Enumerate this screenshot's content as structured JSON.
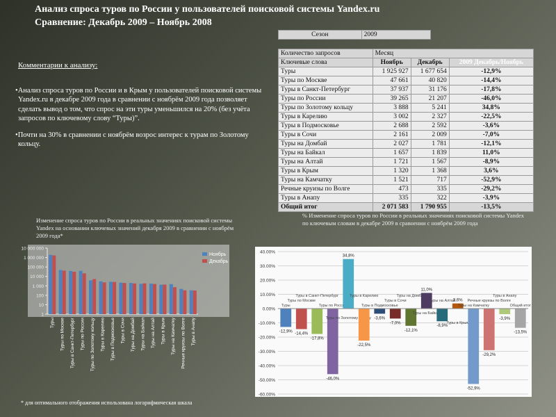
{
  "header": {
    "title": "Анализ спроса туров  по  России у пользователей  поисковой системы Yandex.ru",
    "subtitle": "Сравнение: Декабрь 2009 – Ноябрь 2008"
  },
  "comments": {
    "heading": "Комментарии к анализу:",
    "items": [
      "Анализ спроса туров по России и в Крым у пользователей поисковой системы Yandex.ru в  декабре 2009 года в сравнении с ноябрём  2009 года позволяет сделать вывод о  том, что спрос на эти туры  уменьшился на 20% (без учёта запросов по ключевому слову “Туры)”.",
      "Почти  на 30%  в сравнении с ноябрём возрос интерес к  турам по Золотому кольцу."
    ]
  },
  "season": [
    "Сезон",
    "2009"
  ],
  "table": {
    "head1": [
      "Количество запросов",
      "Месяц"
    ],
    "head2": [
      "Ключевые слова",
      "Ноябрь",
      "Декабрь",
      "2009 Декабрь/Ноябрь"
    ],
    "rows": [
      [
        "Туры",
        "1 925 927",
        "1 677 654",
        "-12,9%"
      ],
      [
        "Туры по Москве",
        "47 661",
        "40 820",
        "-14,4%"
      ],
      [
        "Туры в Санкт-Петербург",
        "37 937",
        "31 176",
        "-17,8%"
      ],
      [
        "Туры по России",
        "39 265",
        "21 207",
        "-46,0%"
      ],
      [
        "Туры по Золотому кольцу",
        "3 888",
        "5 241",
        "34,8%"
      ],
      [
        "Туры в Карелию",
        "3 002",
        "2 327",
        "-22,5%"
      ],
      [
        "Туры в Подмосковье",
        "2 688",
        "2 592",
        "-3,6%"
      ],
      [
        "Туры в Сочи",
        "2 161",
        "2 009",
        "-7,0%"
      ],
      [
        "Туры на Домбай",
        "2 027",
        "1 781",
        "-12,1%"
      ],
      [
        "Туры на Байкал",
        "1 657",
        "1 839",
        "11,0%"
      ],
      [
        "Туры на Алтай",
        "1 721",
        "1 567",
        "-8,9%"
      ],
      [
        "Туры в Крым",
        "1 320",
        "1 368",
        "3,6%"
      ],
      [
        "Туры на Камчатку",
        "1 521",
        "717",
        "-52,9%"
      ],
      [
        "Речные круизы по Волге",
        "473",
        "335",
        "-29,2%"
      ],
      [
        "Туры в Анапу",
        "335",
        "322",
        "-3,9%"
      ],
      [
        "Общий итог",
        "2 071 583",
        "1 790 955",
        "-13,5%"
      ]
    ]
  },
  "chart_data": [
    {
      "type": "bar",
      "title": "Изменение спроса туров по России в реальных значениях поисковой системы Yandex на основании ключевых значений декабря 2009 в сравнении с ноябрём 2009 года*",
      "log_scale": true,
      "categories": [
        "Туры",
        "Туры по Москве",
        "Туры в Санкт-Петербург",
        "Туры по России",
        "Туры по Золотому кольцу",
        "Туры в Карелию",
        "Туры в Подмосковье",
        "Туры в Сочи",
        "Туры на Домбай",
        "Туры на Байкал",
        "Туры на Алтай",
        "Туры в Крым",
        "Туры на Камчатку",
        "Речные круизы по Волге",
        "Туры в Анапу"
      ],
      "series": [
        {
          "name": "Ноябрь",
          "color": "#4f81bd",
          "values": [
            1925927,
            47661,
            37937,
            39265,
            3888,
            3002,
            2688,
            2161,
            2027,
            1657,
            1721,
            1320,
            1521,
            473,
            335
          ]
        },
        {
          "name": "Декабрь",
          "color": "#c0504d",
          "values": [
            1677654,
            40820,
            31176,
            21207,
            5241,
            2327,
            2592,
            2009,
            1781,
            1839,
            1567,
            1368,
            717,
            335,
            322
          ]
        }
      ],
      "ylim": [
        1,
        10000000
      ],
      "yticks": [
        1,
        10,
        100,
        {
          "value": 1000,
          "label": "1 000"
        },
        {
          "value": 10000,
          "label": "10 000"
        },
        {
          "value": 100000,
          "label": "100 000"
        },
        {
          "value": 1000000,
          "label": "1 000 000"
        },
        {
          "value": 10000000,
          "label": "10 000 000"
        }
      ],
      "legend": "right"
    },
    {
      "type": "bar",
      "title": "% Изменение спроса туров по России в реальных значениях поисковой системы Yandex по ключевым словам в декабре 2009 в сравнении с ноябрём 2009 года",
      "categories": [
        "Туры",
        "Туры по Москве",
        "Туры в Санкт-Петербург",
        "Туры по России",
        "Туры по Золотому кольцу",
        "Туры в Карелию",
        "Туры в Подмосковье",
        "Туры в Сочи",
        "Туры на Домбай",
        "Туры на Байкал",
        "Туры на Алтай",
        "Туры в Крым",
        "Туры на Камчатку",
        "Речные круизы по Волге",
        "Туры в Анапу",
        "Общий итог"
      ],
      "values": [
        -12.9,
        -14.4,
        -17.8,
        -46.0,
        34.8,
        -22.5,
        -3.6,
        -7.0,
        -12.1,
        11.0,
        -8.9,
        3.6,
        -52.9,
        -29.2,
        -3.9,
        -13.5
      ],
      "value_labels": [
        "-12,9%",
        "-14,4%",
        "-17,8%",
        "-46,0%",
        "34,8%",
        "-22,5%",
        "-3,6%",
        "-7,0%",
        "-12,1%",
        "11,0%",
        "-8,9%",
        "3,6%",
        "-52,9%",
        "-29,2%",
        "-3,9%",
        "-13,5%"
      ],
      "colors": [
        "#4f81bd",
        "#c0504d",
        "#9bbb59",
        "#8064a2",
        "#4bacc6",
        "#f79646",
        "#2c4d75",
        "#772c2a",
        "#5f7530",
        "#4d3b62",
        "#276a7c",
        "#b65708",
        "#729aca",
        "#cd7371",
        "#afc97a",
        "#a5a5a5"
      ],
      "ylim": [
        -60,
        40
      ],
      "yticks": [
        {
          "value": -60,
          "label": "-60.00%"
        },
        {
          "value": -50,
          "label": "-50.00%"
        },
        {
          "value": -40,
          "label": "-40.00%"
        },
        {
          "value": -30,
          "label": "-30.00%"
        },
        {
          "value": -20,
          "label": "-20.00%"
        },
        {
          "value": -10,
          "label": "-10.00%"
        },
        {
          "value": 0,
          "label": "0.00%"
        },
        {
          "value": 10,
          "label": "10.00%"
        },
        {
          "value": 20,
          "label": "20.00%"
        },
        {
          "value": 30,
          "label": "30.00%"
        },
        {
          "value": 40,
          "label": "40.00%"
        }
      ],
      "grid": true
    }
  ],
  "footnote": "* для оптимального отображения использована логарифмическая шкала"
}
